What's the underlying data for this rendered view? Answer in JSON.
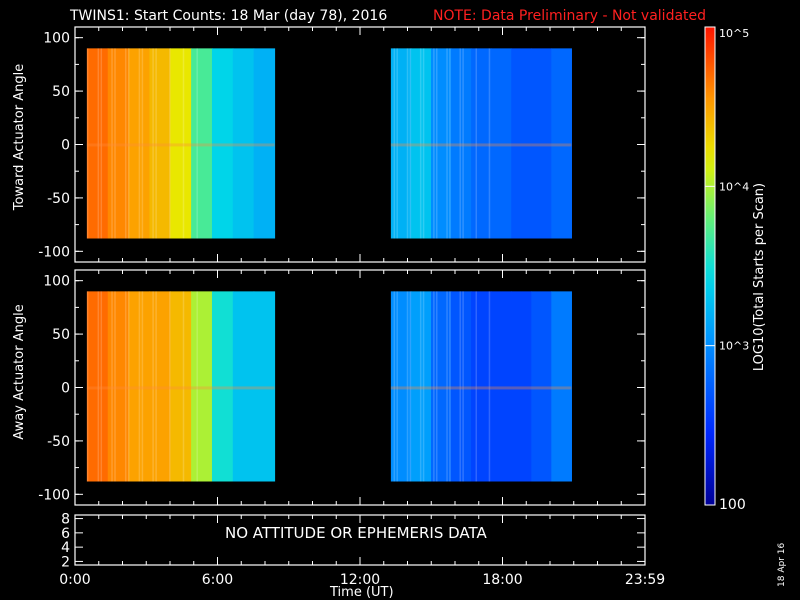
{
  "header": {
    "title": "TWINS1: Start Counts: 18 Mar (day  78), 2016",
    "note": "NOTE: Data Preliminary - Not validated"
  },
  "panels": {
    "top_ylabel": "Toward Actuator Angle",
    "bottom_ylabel": "Away Actuator Angle",
    "xlabel": "Time (UT)",
    "no_data_message": "NO ATTITUDE OR EPHEMERIS DATA"
  },
  "colorbar": {
    "label": "LOG10(Total Starts per Scan)",
    "ticks": [
      "10^5",
      "10^4",
      "10^3",
      "100"
    ]
  },
  "date_stamp": "18 Apr 16",
  "chart_data": [
    {
      "type": "heatmap",
      "name": "toward-actuator",
      "ylabel": "Toward Actuator Angle",
      "ylim": [
        -110,
        110
      ],
      "yticks": [
        100,
        50,
        0,
        -50,
        -100
      ],
      "xlim": [
        0,
        24
      ],
      "xticks": [
        "0:00",
        "6:00",
        "12:00",
        "18:00",
        "23:59"
      ],
      "data_blocks": [
        {
          "start_hour": 0.5,
          "end_hour": 8.4,
          "angle_range": [
            -88,
            90
          ],
          "log_counts": [
            4.7,
            4.6,
            4.5,
            4.4,
            4.2,
            3.7,
            3.4,
            3.3,
            3.2
          ]
        },
        {
          "start_hour": 13.3,
          "end_hour": 20.9,
          "angle_range": [
            -88,
            90
          ],
          "log_counts": [
            3.2,
            3.3,
            3.0,
            2.9,
            2.8,
            2.8,
            2.7,
            2.7,
            2.8
          ]
        }
      ]
    },
    {
      "type": "heatmap",
      "name": "away-actuator",
      "ylabel": "Away Actuator Angle",
      "ylim": [
        -110,
        110
      ],
      "yticks": [
        100,
        50,
        0,
        -50,
        -100
      ],
      "xlim": [
        0,
        24
      ],
      "xticks": [
        "0:00",
        "6:00",
        "12:00",
        "18:00",
        "23:59"
      ],
      "data_blocks": [
        {
          "start_hour": 0.5,
          "end_hour": 8.4,
          "angle_range": [
            -88,
            90
          ],
          "log_counts": [
            4.7,
            4.6,
            4.5,
            4.5,
            4.4,
            4.0,
            3.5,
            3.3,
            3.3
          ]
        },
        {
          "start_hour": 13.3,
          "end_hour": 20.9,
          "angle_range": [
            -88,
            90
          ],
          "log_counts": [
            3.0,
            3.1,
            2.8,
            2.7,
            2.6,
            2.6,
            2.6,
            2.7,
            2.9
          ]
        }
      ]
    },
    {
      "type": "line",
      "name": "ephemeris",
      "ylim": [
        1.5,
        8.5
      ],
      "yticks": [
        8,
        6,
        4,
        2
      ],
      "xlim": [
        0,
        24
      ],
      "series": []
    }
  ]
}
